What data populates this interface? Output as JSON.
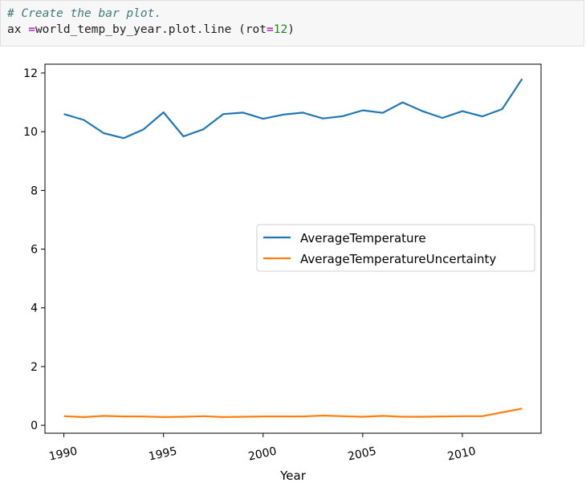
{
  "code": {
    "comment": "# Create the bar plot.",
    "line2_var": "ax ",
    "line2_op": "=",
    "line2_call": "world_temp_by_year.plot.line (rot",
    "line2_eq": "=",
    "line2_num": "12",
    "line2_close": ")"
  },
  "chart_data": {
    "type": "line",
    "title": "",
    "xlabel": "Year",
    "ylabel": "",
    "xlim": [
      1989.05,
      2013.95
    ],
    "ylim": [
      -0.27,
      12.3
    ],
    "x_ticks": [
      1990,
      1995,
      2000,
      2005,
      2010
    ],
    "y_ticks": [
      0,
      2,
      4,
      6,
      8,
      10,
      12
    ],
    "x_tick_rotation": 12,
    "grid": false,
    "legend_position": "center-right",
    "x": [
      1990,
      1991,
      1992,
      1993,
      1994,
      1995,
      1996,
      1997,
      1998,
      1999,
      2000,
      2001,
      2002,
      2003,
      2004,
      2005,
      2006,
      2007,
      2008,
      2009,
      2010,
      2011,
      2012,
      2013
    ],
    "series": [
      {
        "name": "AverageTemperature",
        "color": "#1f77b4",
        "values": [
          10.6,
          10.4,
          9.95,
          9.78,
          10.08,
          10.66,
          9.84,
          10.08,
          10.6,
          10.65,
          10.44,
          10.58,
          10.65,
          10.45,
          10.53,
          10.73,
          10.64,
          11.0,
          10.7,
          10.47,
          10.7,
          10.52,
          10.77,
          11.8
        ]
      },
      {
        "name": "AverageTemperatureUncertainty",
        "color": "#ff7f0e",
        "values": [
          0.31,
          0.28,
          0.32,
          0.3,
          0.3,
          0.28,
          0.29,
          0.31,
          0.28,
          0.29,
          0.3,
          0.3,
          0.3,
          0.33,
          0.31,
          0.29,
          0.32,
          0.29,
          0.29,
          0.3,
          0.31,
          0.31,
          0.44,
          0.57
        ]
      }
    ]
  }
}
